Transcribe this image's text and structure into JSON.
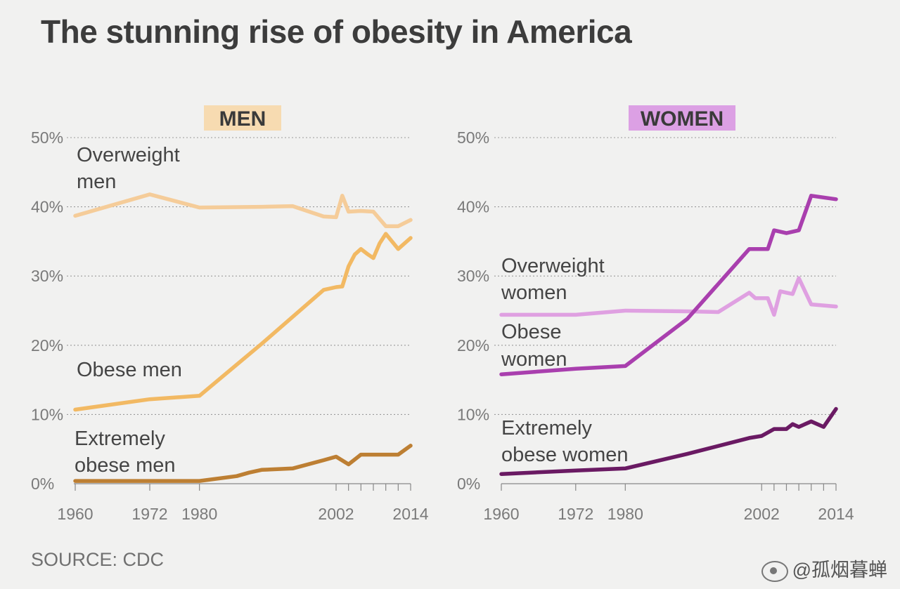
{
  "title": "The stunning rise of obesity in America",
  "source": "SOURCE: CDC",
  "watermark": "@孤烟暮蝉",
  "chart_data": [
    {
      "type": "line",
      "panel": "MEN",
      "badge_color": "#f7dbb1",
      "ylim": [
        0,
        50
      ],
      "y_ticks": [
        "0%",
        "10%",
        "20%",
        "30%",
        "40%",
        "50%"
      ],
      "x_tick_labels": [
        "1960",
        "1972",
        "1980",
        "2002",
        "2014"
      ],
      "grid": "dotted horizontal",
      "series": [
        {
          "name": "Overweight men",
          "color": "#f5cc99",
          "points": [
            [
              1960,
              38.7
            ],
            [
              1972,
              41.8
            ],
            [
              1980,
              39.9
            ],
            [
              1990,
              40.0
            ],
            [
              1995,
              40.1
            ],
            [
              2000,
              38.6
            ],
            [
              2002,
              38.5
            ],
            [
              2003,
              41.6
            ],
            [
              2004,
              39.3
            ],
            [
              2006,
              39.4
            ],
            [
              2008,
              39.3
            ],
            [
              2010,
              37.2
            ],
            [
              2012,
              37.2
            ],
            [
              2014,
              38.1
            ]
          ]
        },
        {
          "name": "Obese men",
          "color": "#f2b963",
          "points": [
            [
              1960,
              10.7
            ],
            [
              1972,
              12.2
            ],
            [
              1980,
              12.7
            ],
            [
              1990,
              20.2
            ],
            [
              2000,
              28.0
            ],
            [
              2002,
              28.4
            ],
            [
              2003,
              28.5
            ],
            [
              2004,
              31.4
            ],
            [
              2005,
              33.1
            ],
            [
              2006,
              33.9
            ],
            [
              2007,
              33.2
            ],
            [
              2008,
              32.6
            ],
            [
              2009,
              34.7
            ],
            [
              2010,
              36.1
            ],
            [
              2012,
              33.9
            ],
            [
              2014,
              35.5
            ]
          ]
        },
        {
          "name": "Extremely obese men",
          "color": "#bd7f33",
          "points": [
            [
              1960,
              0.4
            ],
            [
              1972,
              0.4
            ],
            [
              1980,
              0.4
            ],
            [
              1986,
              1.1
            ],
            [
              1988,
              1.6
            ],
            [
              1990,
              2.0
            ],
            [
              1995,
              2.2
            ],
            [
              2000,
              3.4
            ],
            [
              2002,
              3.9
            ],
            [
              2004,
              2.8
            ],
            [
              2006,
              4.2
            ],
            [
              2008,
              4.2
            ],
            [
              2010,
              4.2
            ],
            [
              2012,
              4.2
            ],
            [
              2014,
              5.5
            ]
          ]
        }
      ]
    },
    {
      "type": "line",
      "panel": "WOMEN",
      "badge_color": "#dca0e4",
      "ylim": [
        0,
        50
      ],
      "y_ticks": [
        "0%",
        "10%",
        "20%",
        "30%",
        "40%",
        "50%"
      ],
      "x_tick_labels": [
        "1960",
        "1972",
        "1980",
        "2002",
        "2014"
      ],
      "grid": "dotted horizontal",
      "series": [
        {
          "name": "Overweight women",
          "color": "#dfa0e1",
          "points": [
            [
              1960,
              24.4
            ],
            [
              1972,
              24.4
            ],
            [
              1980,
              25.0
            ],
            [
              1990,
              24.9
            ],
            [
              1995,
              24.8
            ],
            [
              2000,
              27.6
            ],
            [
              2001,
              26.8
            ],
            [
              2003,
              26.8
            ],
            [
              2004,
              24.4
            ],
            [
              2005,
              27.8
            ],
            [
              2006,
              27.6
            ],
            [
              2007,
              27.4
            ],
            [
              2008,
              29.7
            ],
            [
              2010,
              25.9
            ],
            [
              2014,
              25.6
            ]
          ]
        },
        {
          "name": "Obese women",
          "color": "#a93fae",
          "points": [
            [
              1960,
              15.8
            ],
            [
              1972,
              16.6
            ],
            [
              1980,
              17.0
            ],
            [
              1990,
              23.8
            ],
            [
              2000,
              33.9
            ],
            [
              2002,
              33.9
            ],
            [
              2003,
              33.9
            ],
            [
              2004,
              36.6
            ],
            [
              2006,
              36.2
            ],
            [
              2008,
              36.6
            ],
            [
              2010,
              41.6
            ],
            [
              2014,
              41.1
            ]
          ]
        },
        {
          "name": "Extremely obese women",
          "color": "#6a1a63",
          "points": [
            [
              1960,
              1.4
            ],
            [
              1972,
              1.9
            ],
            [
              1980,
              2.2
            ],
            [
              1990,
              4.3
            ],
            [
              2000,
              6.6
            ],
            [
              2002,
              6.9
            ],
            [
              2004,
              7.9
            ],
            [
              2005,
              7.9
            ],
            [
              2006,
              7.9
            ],
            [
              2007,
              8.6
            ],
            [
              2008,
              8.2
            ],
            [
              2010,
              9.0
            ],
            [
              2012,
              8.2
            ],
            [
              2014,
              10.8
            ]
          ]
        }
      ]
    }
  ]
}
